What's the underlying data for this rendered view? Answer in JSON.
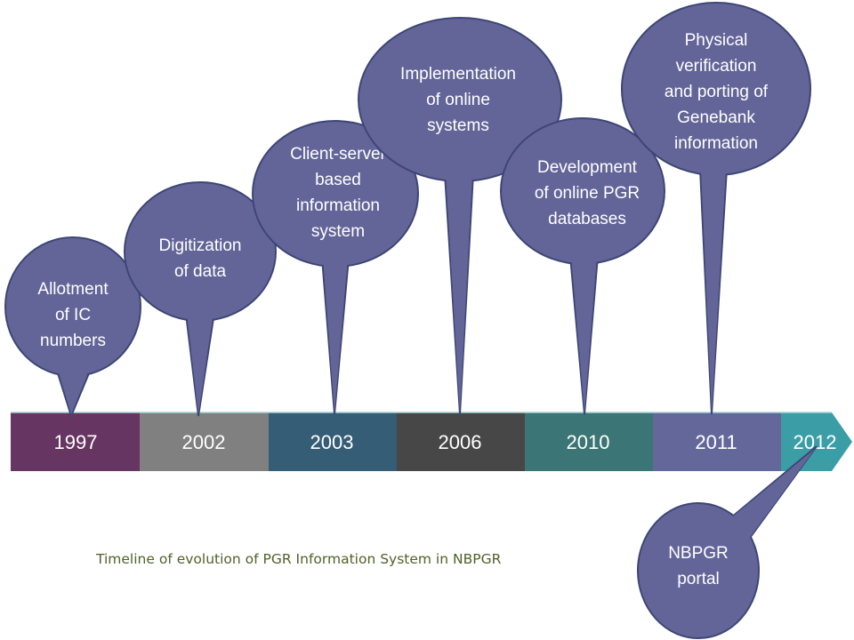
{
  "colors": {
    "bubble": "#636598",
    "segments": [
      "#663562",
      "#808080",
      "#355d75",
      "#474747",
      "#3b7576",
      "#646799",
      "#3b9ea6"
    ],
    "caption": "#4f6228"
  },
  "timeline": {
    "years": [
      "1997",
      "2002",
      "2003",
      "2006",
      "2010",
      "2011",
      "2012"
    ]
  },
  "milestones": [
    {
      "year": "1997",
      "lines": [
        "Allotment",
        "of IC",
        "numbers"
      ]
    },
    {
      "year": "2002",
      "lines": [
        "Digitization",
        "of data"
      ]
    },
    {
      "year": "2003",
      "lines": [
        "Client-server",
        "based",
        "information",
        "system"
      ]
    },
    {
      "year": "2006",
      "lines": [
        "Implementation",
        "of online",
        "systems"
      ]
    },
    {
      "year": "2010",
      "lines": [
        "Development",
        "of online PGR",
        "databases"
      ]
    },
    {
      "year": "2011",
      "lines": [
        "Physical",
        "verification",
        "and porting of",
        "Genebank",
        "information"
      ]
    },
    {
      "year": "2012",
      "lines": [
        "NBPGR",
        "portal"
      ]
    }
  ],
  "caption": "Timeline of evolution of PGR Information System in NBPGR"
}
